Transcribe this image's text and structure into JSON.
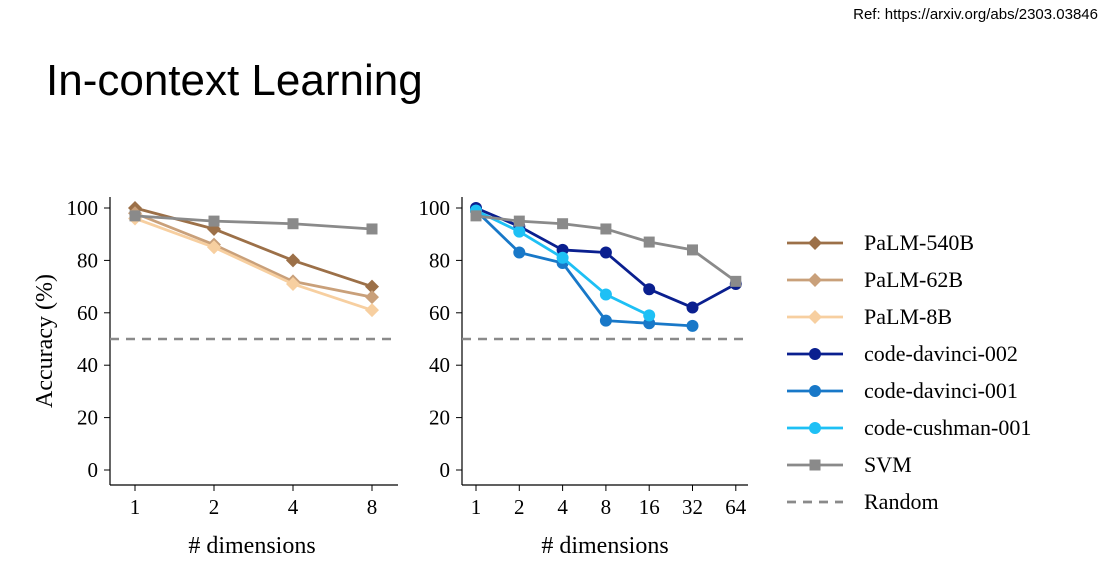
{
  "ref_text": "Ref: https://arxiv.org/abs/2303.03846",
  "slide_title": "In-context Learning",
  "chart_data": [
    {
      "type": "line",
      "xlabel": "# dimensions",
      "ylabel": "Accuracy (%)",
      "x": [
        "1",
        "2",
        "4",
        "8"
      ],
      "ylim": [
        0,
        100
      ],
      "yticks": [
        "0",
        "20",
        "40",
        "60",
        "80",
        "100"
      ],
      "random_baseline": 50,
      "series": [
        {
          "name": "PaLM-540B",
          "color": "#9c7048",
          "marker": "diamond",
          "values": [
            100,
            92,
            80,
            70
          ]
        },
        {
          "name": "PaLM-62B",
          "color": "#c9a07a",
          "marker": "diamond",
          "values": [
            98,
            86,
            72,
            66
          ]
        },
        {
          "name": "PaLM-8B",
          "color": "#f7cfa0",
          "marker": "diamond",
          "values": [
            96,
            85,
            71,
            61
          ]
        },
        {
          "name": "SVM",
          "color": "#8a8a8a",
          "marker": "square",
          "values": [
            97,
            95,
            94,
            92
          ]
        }
      ]
    },
    {
      "type": "line",
      "xlabel": "# dimensions",
      "ylabel": "",
      "x": [
        "1",
        "2",
        "4",
        "8",
        "16",
        "32",
        "64"
      ],
      "ylim": [
        0,
        100
      ],
      "yticks": [
        "0",
        "20",
        "40",
        "60",
        "80",
        "100"
      ],
      "random_baseline": 50,
      "series": [
        {
          "name": "code-davinci-002",
          "color": "#0a1f8f",
          "marker": "circle",
          "values": [
            100,
            93,
            84,
            83,
            69,
            62,
            71
          ]
        },
        {
          "name": "code-davinci-001",
          "color": "#1878c8",
          "marker": "circle",
          "values": [
            99,
            83,
            79,
            57,
            56,
            55,
            null
          ]
        },
        {
          "name": "code-cushman-001",
          "color": "#1ec0f5",
          "marker": "circle",
          "values": [
            99,
            91,
            81,
            67,
            59,
            null,
            null
          ]
        },
        {
          "name": "SVM",
          "color": "#8a8a8a",
          "marker": "square",
          "values": [
            97,
            95,
            94,
            92,
            87,
            84,
            72
          ]
        }
      ]
    }
  ],
  "legend": [
    {
      "label": "PaLM-540B",
      "color": "#9c7048",
      "marker": "diamond",
      "dash": false
    },
    {
      "label": "PaLM-62B",
      "color": "#c9a07a",
      "marker": "diamond",
      "dash": false
    },
    {
      "label": "PaLM-8B",
      "color": "#f7cfa0",
      "marker": "diamond",
      "dash": false
    },
    {
      "label": "code-davinci-002",
      "color": "#0a1f8f",
      "marker": "circle",
      "dash": false
    },
    {
      "label": "code-davinci-001",
      "color": "#1878c8",
      "marker": "circle",
      "dash": false
    },
    {
      "label": "code-cushman-001",
      "color": "#1ec0f5",
      "marker": "circle",
      "dash": false
    },
    {
      "label": "SVM",
      "color": "#8a8a8a",
      "marker": "square",
      "dash": false
    },
    {
      "label": "Random",
      "color": "#8a8a8a",
      "marker": "none",
      "dash": true
    }
  ]
}
